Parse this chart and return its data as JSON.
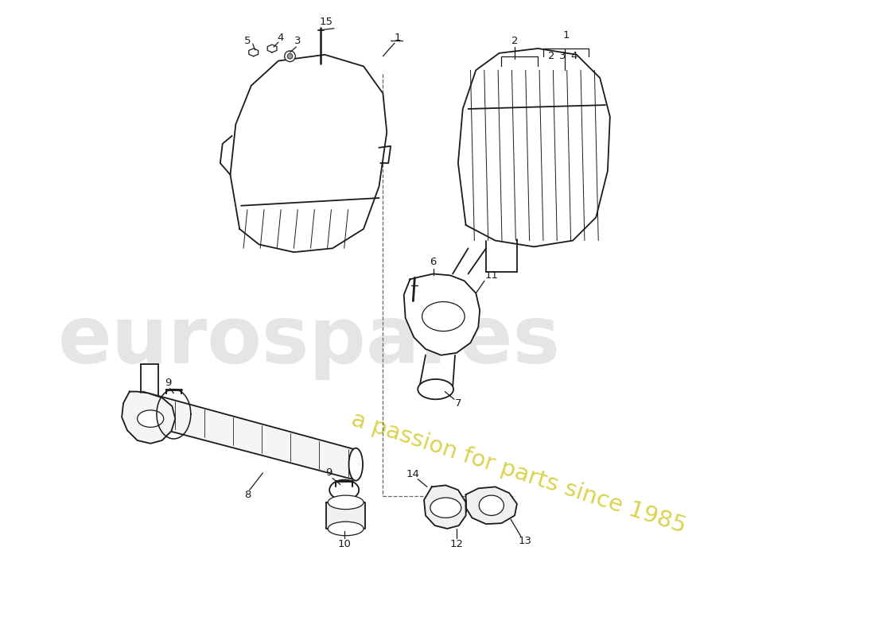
{
  "bg_color": "#ffffff",
  "line_color": "#1a1a1a",
  "watermark_color1": "#cccccc",
  "watermark_color2": "#d4cc30",
  "watermark_text1": "eurospares",
  "watermark_text2": "a passion for parts since 1985"
}
